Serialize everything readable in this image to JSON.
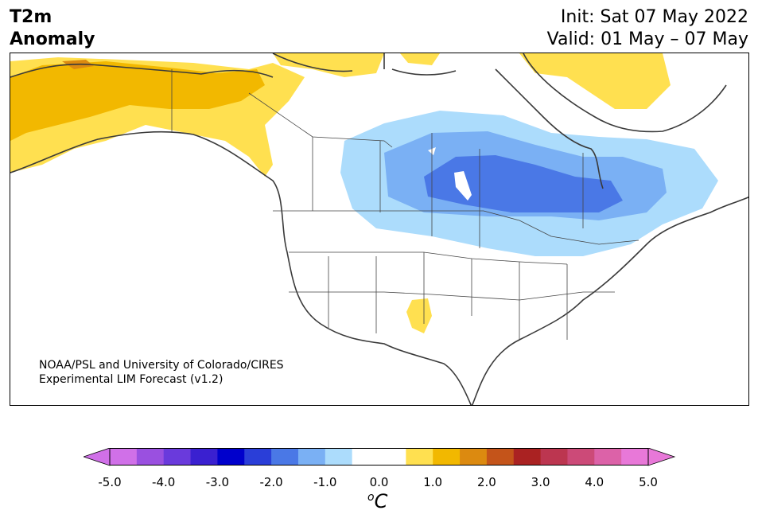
{
  "title": {
    "left_line1": "T2m",
    "left_line2": "Anomaly",
    "init": "Init: Sat 07 May 2022",
    "valid": "Valid: 01 May – 07 May"
  },
  "credit": {
    "line1": "NOAA/PSL and University of Colorado/CIRES",
    "line2": "Experimental LIM Forecast (v1.2)"
  },
  "colorbar": {
    "unit_base": "C",
    "unit_super": "o",
    "ticks": [
      "-5.0",
      "-4.0",
      "-3.0",
      "-2.0",
      "-1.0",
      "0.0",
      "1.0",
      "2.0",
      "3.0",
      "4.0",
      "5.0"
    ],
    "colors": [
      "#d070e8",
      "#9a50e0",
      "#6a3adc",
      "#3a20d0",
      "#0000cc",
      "#2a3ed8",
      "#4a78e6",
      "#7ab0f4",
      "#acdcfc",
      "#ffffff",
      "#ffffff",
      "#ffe050",
      "#f2b800",
      "#dc8a10",
      "#c4541a",
      "#aa2222",
      "#bc3650",
      "#cc4a78",
      "#dc62a8",
      "#e878d8"
    ],
    "under_color": "#d070e8",
    "over_color": "#e878d8"
  },
  "anomaly_colors": {
    "plus_1": "#ffe050",
    "plus_2": "#f2b800",
    "plus_3": "#dc8a10",
    "minus_1": "#acdcfc",
    "minus_2": "#7ab0f4",
    "minus_3": "#4a78e6"
  }
}
